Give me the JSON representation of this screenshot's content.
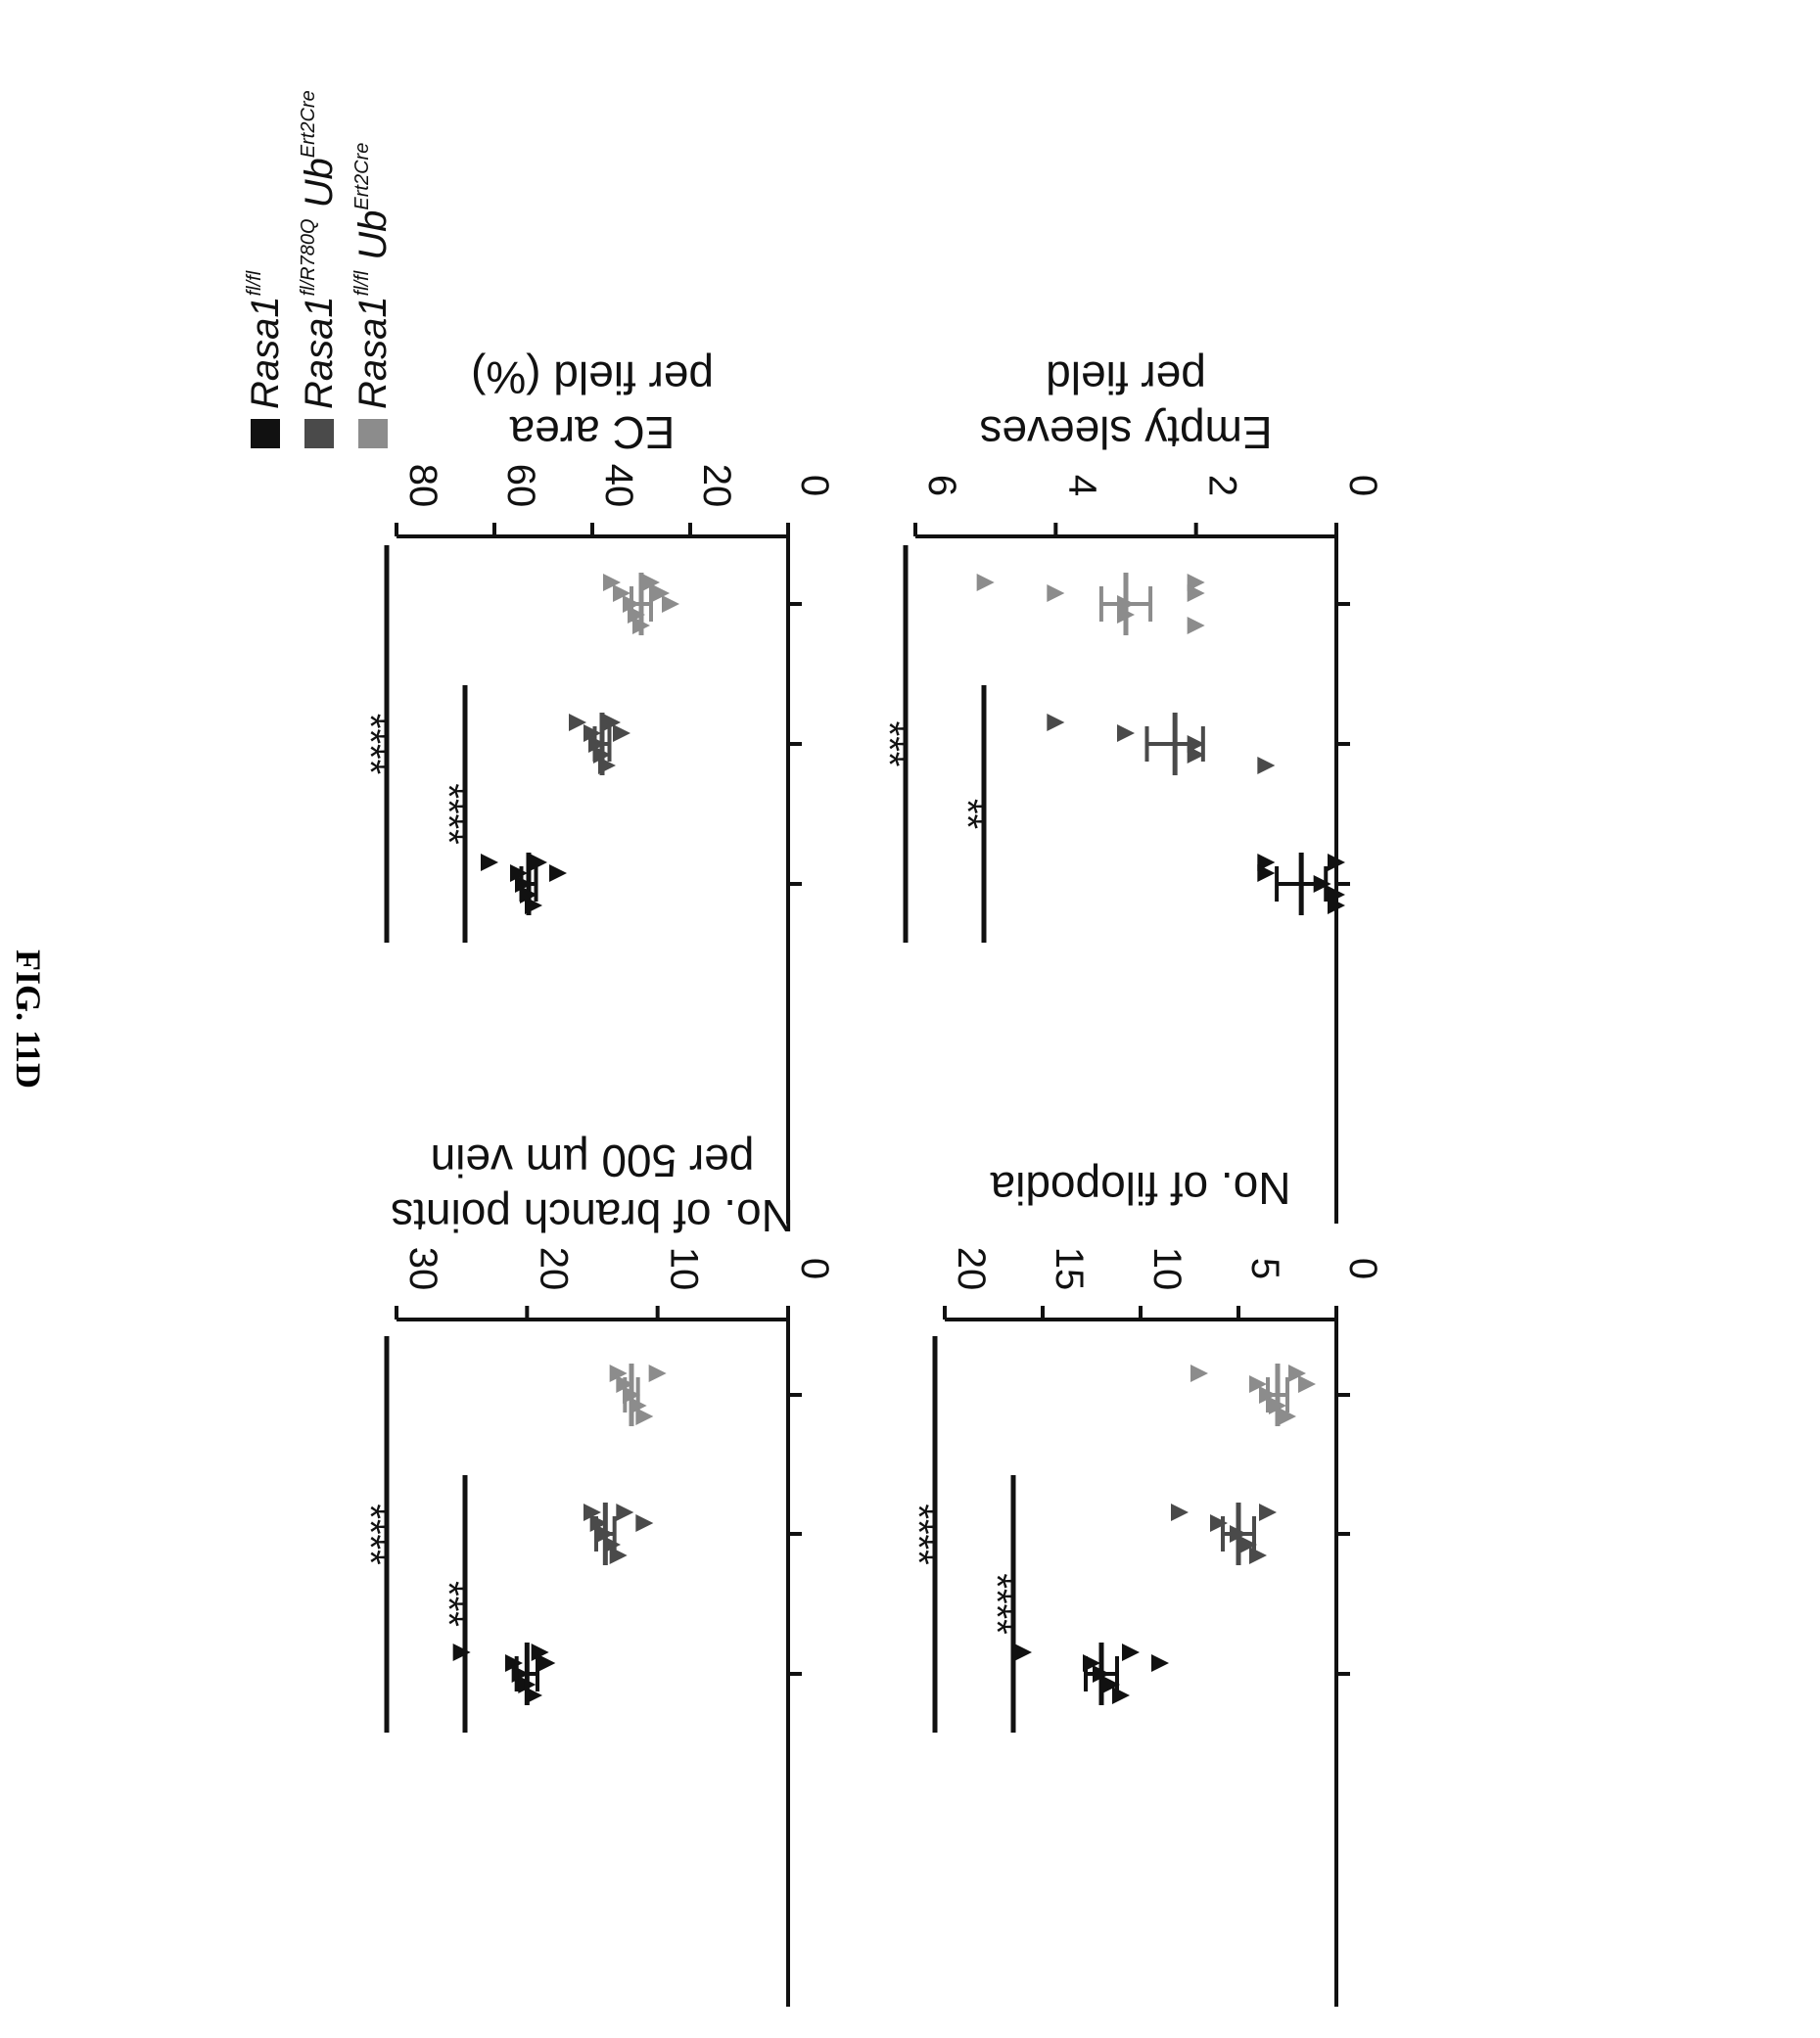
{
  "figure_label": "FIG. 11D",
  "legend": [
    {
      "base": "Rasa1",
      "sup": "fl/fl",
      "suffix": "",
      "suffix_sup": "",
      "color": "#111111"
    },
    {
      "base": "Rasa1",
      "sup": "fl/R780Q",
      "suffix": " Ub",
      "suffix_sup": "Ert2Cre",
      "color": "#4a4a4a"
    },
    {
      "base": "Rasa1",
      "sup": "fl/fl",
      "suffix": " Ub",
      "suffix_sup": "Ert2Cre",
      "color": "#8c8c8c"
    }
  ],
  "chart_data": [
    {
      "type": "scatter",
      "panel": "branch-points",
      "ylabel": [
        "No. of branch points",
        "per 500 µm vein"
      ],
      "ylim": [
        0,
        30
      ],
      "yticks": [
        0,
        10,
        20,
        30
      ],
      "groups": [
        {
          "mean": 20,
          "sem": 0.8,
          "points": [
            25,
            21,
            20.5,
            20,
            19.5,
            19,
            18.5
          ]
        },
        {
          "mean": 14,
          "sem": 0.7,
          "points": [
            15,
            14.5,
            14,
            13.5,
            13,
            12.5,
            11
          ]
        },
        {
          "mean": 12,
          "sem": 0.5,
          "points": [
            13,
            12.5,
            12,
            11.5,
            11,
            10
          ]
        }
      ],
      "significance": [
        {
          "from": 0,
          "to": 1,
          "label": "***"
        },
        {
          "from": 0,
          "to": 2,
          "label": "****"
        }
      ]
    },
    {
      "type": "scatter",
      "panel": "ec-area",
      "ylabel": [
        "EC area",
        "per field (%)"
      ],
      "ylim": [
        0,
        80
      ],
      "yticks": [
        0,
        20,
        40,
        60,
        80
      ],
      "groups": [
        {
          "mean": 53,
          "sem": 1.5,
          "points": [
            61,
            55,
            54,
            53,
            52,
            51,
            47
          ]
        },
        {
          "mean": 38,
          "sem": 1.5,
          "points": [
            43,
            40,
            39,
            38,
            37,
            36,
            34
          ]
        },
        {
          "mean": 30,
          "sem": 2,
          "points": [
            36,
            34,
            32,
            31,
            30,
            28,
            26,
            24
          ]
        }
      ],
      "significance": [
        {
          "from": 0,
          "to": 1,
          "label": "****"
        },
        {
          "from": 0,
          "to": 2,
          "label": "****"
        }
      ]
    },
    {
      "type": "scatter",
      "panel": "filopodia",
      "ylabel": [
        "No. of filopodia"
      ],
      "ylim": [
        0,
        20
      ],
      "yticks": [
        0,
        5,
        10,
        15,
        20
      ],
      "groups": [
        {
          "mean": 12,
          "sem": 0.8,
          "points": [
            16,
            12.5,
            12,
            11.5,
            11,
            10.5,
            9
          ]
        },
        {
          "mean": 5,
          "sem": 0.8,
          "points": [
            8,
            6,
            5,
            4.5,
            4,
            3.5
          ]
        },
        {
          "mean": 3,
          "sem": 0.5,
          "points": [
            7,
            4,
            3.5,
            3,
            2.5,
            2,
            1.5
          ]
        }
      ],
      "significance": [
        {
          "from": 0,
          "to": 1,
          "label": "****"
        },
        {
          "from": 0,
          "to": 2,
          "label": "****"
        }
      ]
    },
    {
      "type": "scatter",
      "panel": "empty-sleeves",
      "ylabel": [
        "Empty sleeves",
        "per field"
      ],
      "ylim": [
        0,
        6
      ],
      "yticks": [
        0,
        2,
        4,
        6
      ],
      "groups": [
        {
          "mean": 0.5,
          "sem": 0.35,
          "points": [
            1,
            1,
            0.2,
            0,
            0,
            0
          ]
        },
        {
          "mean": 2.3,
          "sem": 0.4,
          "points": [
            4,
            3,
            2,
            2,
            1
          ]
        },
        {
          "mean": 3,
          "sem": 0.35,
          "points": [
            5,
            4,
            3,
            3,
            2,
            2,
            2
          ]
        }
      ],
      "significance": [
        {
          "from": 0,
          "to": 1,
          "label": "**"
        },
        {
          "from": 0,
          "to": 2,
          "label": "***"
        }
      ]
    }
  ]
}
